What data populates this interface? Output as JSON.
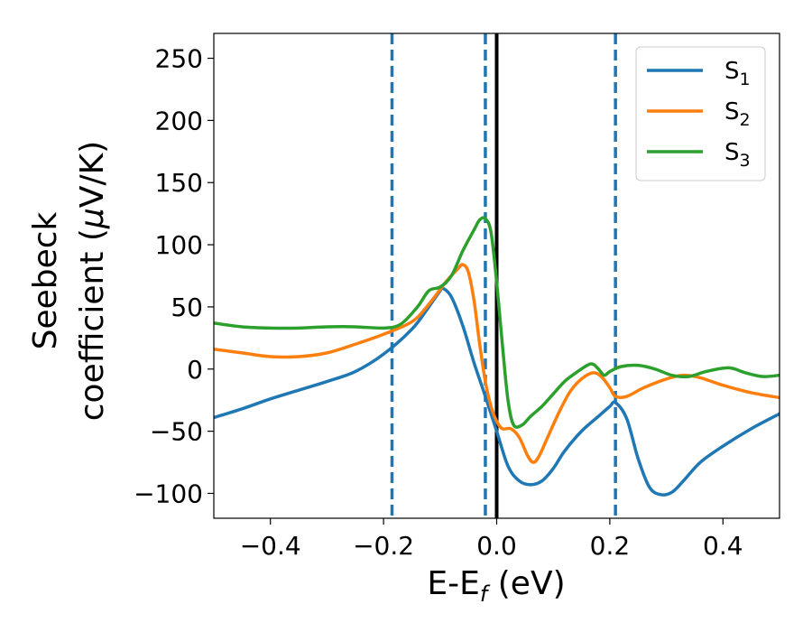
{
  "chart_data": {
    "type": "line",
    "xlabel_main": "E-E",
    "xlabel_sub": "f",
    "xlabel_unit": " (eV)",
    "ylabel_line1": "Seebeck",
    "ylabel_line2_pre": "coefficient  (",
    "ylabel_mu": "μ",
    "ylabel_line2_post": "V/K)",
    "xlim": [
      -0.5,
      0.5
    ],
    "ylim": [
      -120,
      270
    ],
    "xticks": [
      -0.4,
      -0.2,
      0.0,
      0.2,
      0.4
    ],
    "xtick_labels": [
      "−0.4",
      "−0.2",
      "0.0",
      "0.2",
      "0.4"
    ],
    "yticks": [
      -100,
      -50,
      0,
      50,
      100,
      150,
      200,
      250
    ],
    "ytick_labels": [
      "−100",
      "−50",
      "0",
      "50",
      "100",
      "150",
      "200",
      "250"
    ],
    "grid": false,
    "legend_position": "top-right",
    "vertical_lines": [
      {
        "x": -0.185,
        "style": "dashed",
        "color": "#1f77b4"
      },
      {
        "x": -0.02,
        "style": "dashed",
        "color": "#1f77b4"
      },
      {
        "x": 0.21,
        "style": "dashed",
        "color": "#1f77b4"
      },
      {
        "x": 0.0,
        "style": "solid",
        "color": "#000000"
      }
    ],
    "series": [
      {
        "name": "S",
        "subscript": "1",
        "color": "#1f77b4",
        "points": [
          [
            -0.5,
            -39
          ],
          [
            -0.45,
            -32
          ],
          [
            -0.4,
            -24
          ],
          [
            -0.35,
            -17
          ],
          [
            -0.3,
            -10
          ],
          [
            -0.25,
            -2
          ],
          [
            -0.2,
            12
          ],
          [
            -0.15,
            32
          ],
          [
            -0.12,
            50
          ],
          [
            -0.1,
            63
          ],
          [
            -0.095,
            65
          ],
          [
            -0.08,
            58
          ],
          [
            -0.06,
            35
          ],
          [
            -0.04,
            5
          ],
          [
            -0.02,
            -22
          ],
          [
            0.0,
            -50
          ],
          [
            0.02,
            -78
          ],
          [
            0.04,
            -90
          ],
          [
            0.06,
            -93
          ],
          [
            0.08,
            -90
          ],
          [
            0.1,
            -80
          ],
          [
            0.12,
            -66
          ],
          [
            0.15,
            -50
          ],
          [
            0.18,
            -38
          ],
          [
            0.2,
            -30
          ],
          [
            0.21,
            -27
          ],
          [
            0.23,
            -40
          ],
          [
            0.25,
            -72
          ],
          [
            0.27,
            -95
          ],
          [
            0.29,
            -101
          ],
          [
            0.31,
            -99
          ],
          [
            0.33,
            -90
          ],
          [
            0.36,
            -75
          ],
          [
            0.4,
            -62
          ],
          [
            0.45,
            -48
          ],
          [
            0.5,
            -36
          ]
        ]
      },
      {
        "name": "S",
        "subscript": "2",
        "color": "#ff7f0e",
        "points": [
          [
            -0.5,
            16
          ],
          [
            -0.45,
            13
          ],
          [
            -0.4,
            10
          ],
          [
            -0.35,
            10
          ],
          [
            -0.3,
            13
          ],
          [
            -0.25,
            20
          ],
          [
            -0.2,
            28
          ],
          [
            -0.15,
            38
          ],
          [
            -0.12,
            52
          ],
          [
            -0.09,
            70
          ],
          [
            -0.07,
            80
          ],
          [
            -0.06,
            84
          ],
          [
            -0.05,
            78
          ],
          [
            -0.04,
            55
          ],
          [
            -0.03,
            20
          ],
          [
            -0.02,
            -10
          ],
          [
            -0.01,
            -30
          ],
          [
            0.0,
            -42
          ],
          [
            0.01,
            -48
          ],
          [
            0.025,
            -48
          ],
          [
            0.04,
            -55
          ],
          [
            0.055,
            -70
          ],
          [
            0.065,
            -75
          ],
          [
            0.075,
            -70
          ],
          [
            0.09,
            -55
          ],
          [
            0.11,
            -35
          ],
          [
            0.13,
            -18
          ],
          [
            0.15,
            -8
          ],
          [
            0.17,
            -3
          ],
          [
            0.185,
            -6
          ],
          [
            0.2,
            -15
          ],
          [
            0.21,
            -22
          ],
          [
            0.23,
            -22
          ],
          [
            0.26,
            -15
          ],
          [
            0.3,
            -8
          ],
          [
            0.33,
            -5
          ],
          [
            0.36,
            -7
          ],
          [
            0.4,
            -13
          ],
          [
            0.45,
            -19
          ],
          [
            0.5,
            -23
          ]
        ]
      },
      {
        "name": "S",
        "subscript": "3",
        "color": "#2ca02c",
        "points": [
          [
            -0.5,
            37
          ],
          [
            -0.45,
            34
          ],
          [
            -0.4,
            33
          ],
          [
            -0.35,
            33
          ],
          [
            -0.3,
            34
          ],
          [
            -0.25,
            34
          ],
          [
            -0.2,
            33
          ],
          [
            -0.17,
            36
          ],
          [
            -0.14,
            50
          ],
          [
            -0.12,
            63
          ],
          [
            -0.1,
            66
          ],
          [
            -0.08,
            75
          ],
          [
            -0.06,
            95
          ],
          [
            -0.04,
            112
          ],
          [
            -0.03,
            120
          ],
          [
            -0.02,
            121
          ],
          [
            -0.01,
            110
          ],
          [
            0.0,
            70
          ],
          [
            0.01,
            20
          ],
          [
            0.02,
            -25
          ],
          [
            0.03,
            -45
          ],
          [
            0.045,
            -45
          ],
          [
            0.06,
            -38
          ],
          [
            0.08,
            -30
          ],
          [
            0.1,
            -20
          ],
          [
            0.12,
            -10
          ],
          [
            0.14,
            -3
          ],
          [
            0.16,
            3
          ],
          [
            0.17,
            4
          ],
          [
            0.18,
            0
          ],
          [
            0.19,
            -5
          ],
          [
            0.2,
            -2
          ],
          [
            0.22,
            2
          ],
          [
            0.25,
            3
          ],
          [
            0.28,
            0
          ],
          [
            0.31,
            -5
          ],
          [
            0.34,
            -6
          ],
          [
            0.37,
            -2
          ],
          [
            0.41,
            1
          ],
          [
            0.44,
            -3
          ],
          [
            0.47,
            -6
          ],
          [
            0.5,
            -5
          ]
        ]
      }
    ]
  }
}
